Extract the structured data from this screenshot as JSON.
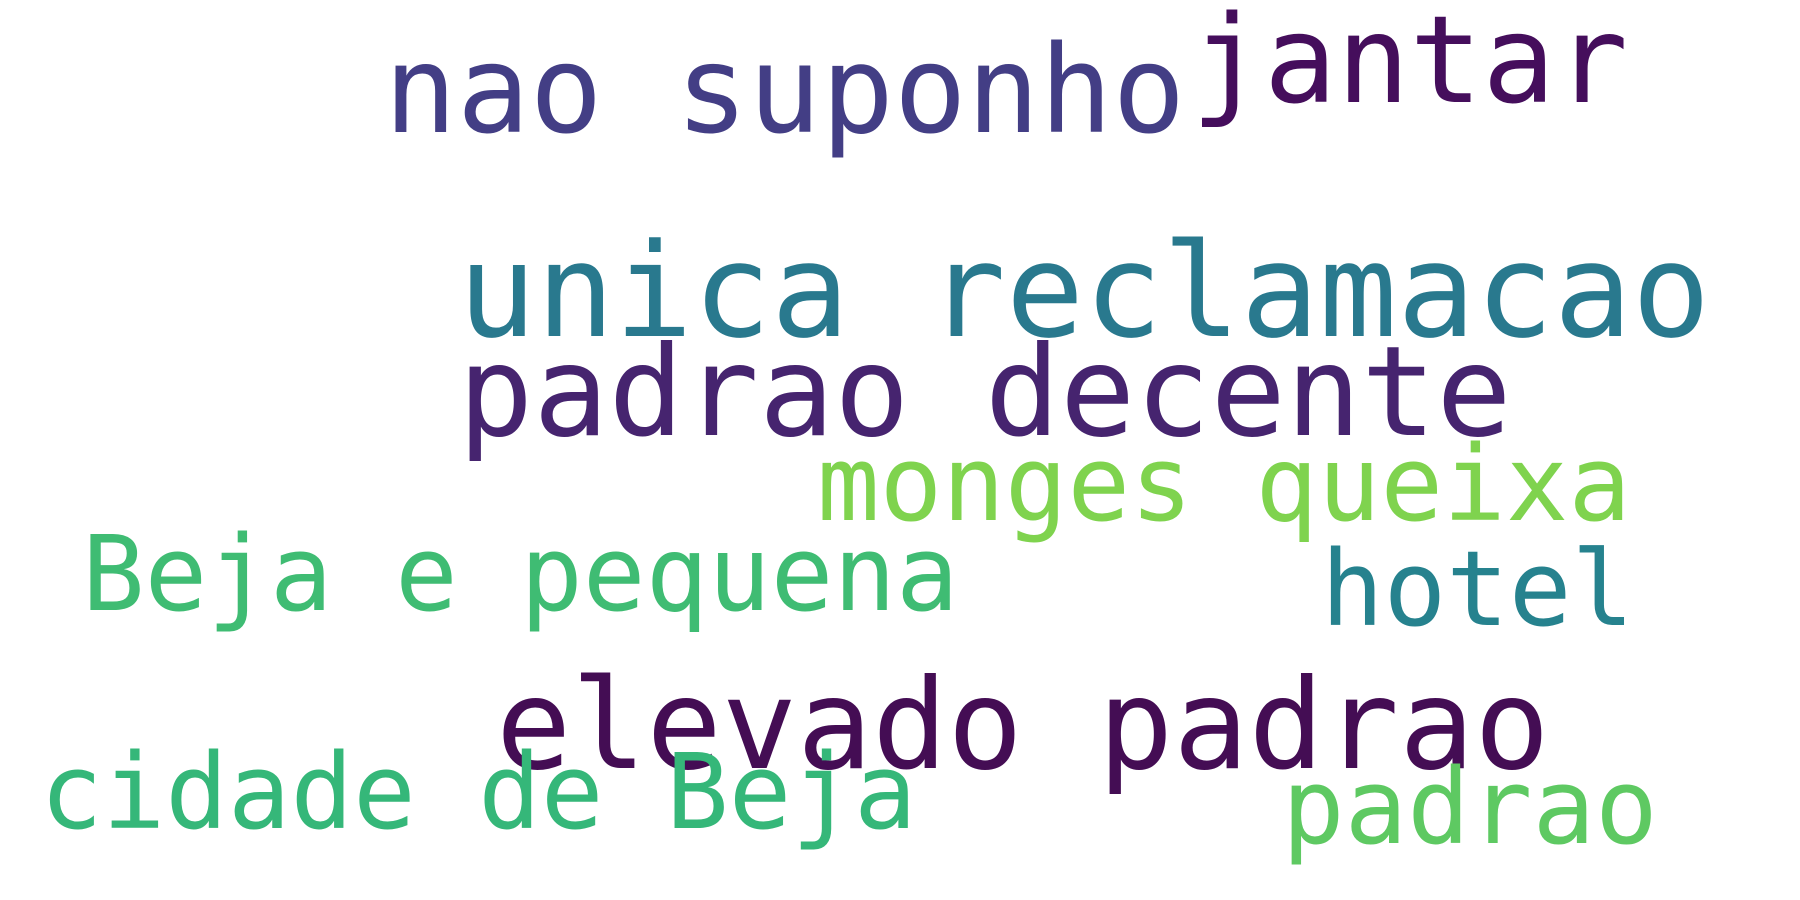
{
  "wordcloud": {
    "words": [
      {
        "text": "nao suponho",
        "color": "#433e85"
      },
      {
        "text": "jantar",
        "color": "#450e5c"
      },
      {
        "text": "unica reclamacao",
        "color": "#29798e"
      },
      {
        "text": "padrao decente",
        "color": "#46246f"
      },
      {
        "text": "monges queixa",
        "color": "#7fd34e"
      },
      {
        "text": "Beja e pequena",
        "color": "#3fbc73"
      },
      {
        "text": "hotel",
        "color": "#26828e"
      },
      {
        "text": "elevado padrao",
        "color": "#440d54"
      },
      {
        "text": "cidade de Beja",
        "color": "#35b779"
      },
      {
        "text": "padrao",
        "color": "#5ec962"
      }
    ]
  }
}
